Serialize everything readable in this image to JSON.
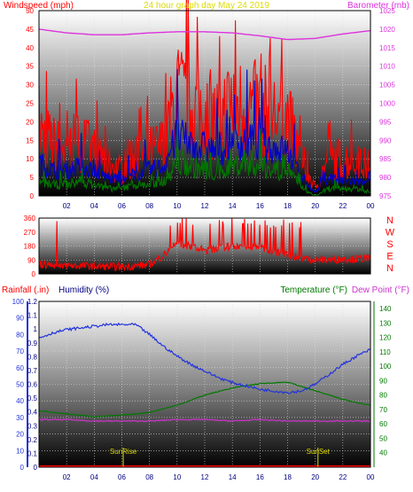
{
  "header": {
    "left_title": "Windspeed (mph)",
    "center_title": "24 hour graph day   May 24 2019",
    "right_title": "Barometer (mb)"
  },
  "colors": {
    "wind": "#ff0000",
    "wind_avg": "#0000cc",
    "wind_low": "#007700",
    "barometer": "#dd33dd",
    "humidity": "#2233dd",
    "temperature": "#007a00",
    "dew_point": "#cc33cc",
    "rain": "#ff0000",
    "sun_markers": "#dddd00"
  },
  "chart_data": [
    {
      "type": "line",
      "panel": "wind_barometer",
      "title": "24 hour graph day   May 24 2019",
      "xlabel": "",
      "ylabel": "Windspeed (mph)",
      "y2label": "Barometer (mb)",
      "ylim": [
        0,
        50
      ],
      "y2lim": [
        975,
        1025
      ],
      "xlim": [
        0,
        24
      ],
      "x_ticks": [
        "02",
        "04",
        "06",
        "08",
        "10",
        "12",
        "14",
        "16",
        "18",
        "20",
        "22",
        "00"
      ],
      "y_ticks": [
        "0",
        "5",
        "10",
        "15",
        "20",
        "25",
        "30",
        "35",
        "40",
        "45",
        "50"
      ],
      "y2_ticks": [
        "975",
        "980",
        "985",
        "990",
        "995",
        "1000",
        "1005",
        "1010",
        "1015",
        "1020",
        "1025"
      ],
      "series": [
        {
          "name": "Windspeed gust",
          "axis": "y",
          "x": [
            0,
            1,
            2,
            3,
            4,
            5,
            6,
            7,
            8,
            9,
            10,
            11,
            12,
            13,
            14,
            15,
            16,
            17,
            18,
            19,
            20,
            21,
            22,
            23,
            24
          ],
          "values": [
            18,
            14,
            13,
            15,
            12,
            9,
            7,
            11,
            12,
            14,
            27,
            24,
            22,
            21,
            25,
            24,
            23,
            22,
            21,
            10,
            2,
            10,
            10,
            9,
            8
          ]
        },
        {
          "name": "Windspeed average",
          "axis": "y",
          "x": [
            0,
            1,
            2,
            3,
            4,
            5,
            6,
            7,
            8,
            9,
            10,
            11,
            12,
            13,
            14,
            15,
            16,
            17,
            18,
            19,
            20,
            21,
            22,
            23,
            24
          ],
          "values": [
            9,
            7,
            7,
            8,
            7,
            5,
            4,
            6,
            7,
            8,
            16,
            14,
            13,
            12,
            14,
            15,
            14,
            13,
            12,
            5,
            1,
            5,
            4,
            4,
            3
          ]
        },
        {
          "name": "Windspeed low",
          "axis": "y",
          "x": [
            0,
            1,
            2,
            3,
            4,
            5,
            6,
            7,
            8,
            9,
            10,
            11,
            12,
            13,
            14,
            15,
            16,
            17,
            18,
            19,
            20,
            21,
            22,
            23,
            24
          ],
          "values": [
            4,
            3,
            3,
            4,
            3,
            2,
            2,
            3,
            3,
            4,
            9,
            8,
            7,
            6,
            8,
            9,
            8,
            7,
            7,
            2,
            0,
            2,
            2,
            2,
            1
          ]
        },
        {
          "name": "Barometer",
          "axis": "y2",
          "x": [
            0,
            2,
            4,
            6,
            8,
            10,
            12,
            14,
            16,
            18,
            20,
            22,
            24
          ],
          "values": [
            1020,
            1019,
            1018.5,
            1018.5,
            1019,
            1019.3,
            1019.3,
            1019,
            1018.2,
            1017.2,
            1017.5,
            1018.7,
            1019.6
          ]
        }
      ]
    },
    {
      "type": "line",
      "panel": "wind_direction",
      "ylim": [
        0,
        360
      ],
      "xlim": [
        0,
        24
      ],
      "y_ticks": [
        "0",
        "90",
        "180",
        "270",
        "360"
      ],
      "y2_ticks": [
        "N",
        "E",
        "S",
        "W",
        "N"
      ],
      "series": [
        {
          "name": "Wind direction",
          "x": [
            0,
            2,
            4,
            6,
            8,
            9,
            10,
            12,
            14,
            16,
            18,
            20,
            22,
            24
          ],
          "values": [
            60,
            55,
            50,
            45,
            60,
            120,
            200,
            150,
            180,
            170,
            120,
            90,
            95,
            100
          ]
        }
      ]
    },
    {
      "type": "line",
      "panel": "rain_humidity_temperature",
      "ylabel": "Rainfall (.in)",
      "y_humidity_label": "Humidity (%)",
      "y2label": "Temperature (°F)",
      "y3label": "Dew Point (°F)",
      "xlim": [
        0,
        24
      ],
      "rain_lim": [
        0,
        1.2
      ],
      "humidity_lim": [
        0,
        100
      ],
      "temp_lim": [
        30,
        145
      ],
      "x_ticks": [
        "02",
        "04",
        "06",
        "08",
        "10",
        "12",
        "14",
        "16",
        "18",
        "20",
        "22",
        "00"
      ],
      "rain_ticks": [
        "0",
        "0.1",
        "0.2",
        "0.3",
        "0.4",
        "0.5",
        "0.6",
        "0.7",
        "0.8",
        "0.9",
        "1",
        "1.1",
        "1.2"
      ],
      "humidity_ticks": [
        "0",
        "10",
        "20",
        "30",
        "40",
        "50",
        "60",
        "70",
        "80",
        "90",
        "100"
      ],
      "temp_ticks": [
        "40",
        "50",
        "60",
        "70",
        "80",
        "90",
        "100",
        "110",
        "120",
        "130",
        "140"
      ],
      "annotations": [
        {
          "text": "SunRise",
          "x": 6.1
        },
        {
          "text": "SunSet",
          "x": 20.2
        }
      ],
      "series": [
        {
          "name": "Humidity",
          "axis": "humidity",
          "x": [
            0,
            1,
            2,
            3,
            4,
            5,
            6,
            7,
            8,
            9,
            10,
            11,
            12,
            13,
            14,
            15,
            16,
            17,
            18,
            19,
            20,
            21,
            22,
            23,
            24
          ],
          "values": [
            78,
            81,
            83,
            84,
            85,
            86,
            86,
            86,
            80,
            73,
            67,
            62,
            58,
            54,
            51,
            49,
            47,
            46,
            45,
            46,
            50,
            56,
            62,
            67,
            71
          ]
        },
        {
          "name": "Temperature",
          "axis": "temp",
          "x": [
            0,
            2,
            4,
            6,
            8,
            10,
            12,
            14,
            16,
            18,
            20,
            22,
            24
          ],
          "values": [
            69,
            67,
            65,
            66,
            68,
            73,
            80,
            85,
            88,
            89,
            83,
            77,
            73
          ]
        },
        {
          "name": "Dew Point",
          "axis": "temp",
          "x": [
            0,
            2,
            4,
            6,
            8,
            10,
            12,
            14,
            16,
            18,
            20,
            22,
            24
          ],
          "values": [
            63,
            63,
            62,
            62,
            62,
            63,
            63,
            62,
            63,
            62,
            62,
            62,
            62
          ]
        },
        {
          "name": "Rainfall",
          "axis": "rain",
          "x": [
            0,
            24
          ],
          "values": [
            0,
            0
          ]
        }
      ]
    }
  ]
}
